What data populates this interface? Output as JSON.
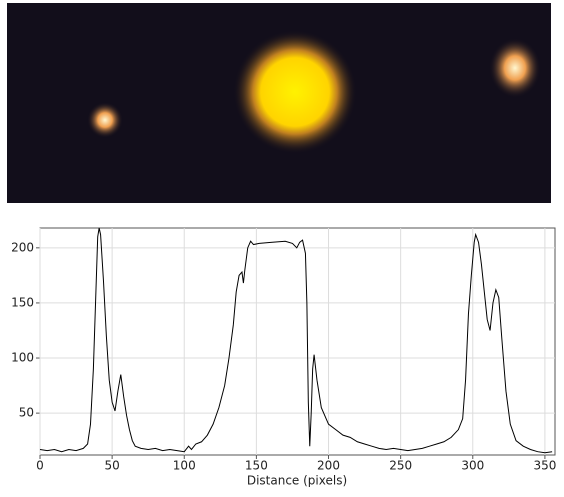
{
  "chart_data": {
    "type": "line",
    "xlabel": "Distance (pixels)",
    "x": [
      0,
      5,
      10,
      15,
      20,
      25,
      30,
      33,
      35,
      37,
      39,
      40,
      41,
      42,
      44,
      46,
      48,
      50,
      52,
      54,
      56,
      58,
      60,
      62,
      64,
      66,
      70,
      75,
      80,
      85,
      90,
      95,
      100,
      103,
      105,
      108,
      112,
      116,
      120,
      124,
      128,
      131,
      134,
      136,
      138,
      140,
      141,
      142,
      144,
      146,
      148,
      152,
      160,
      170,
      175,
      178,
      180,
      182,
      184,
      185,
      186,
      187,
      188,
      189,
      190,
      192,
      195,
      200,
      205,
      210,
      215,
      220,
      225,
      230,
      235,
      240,
      245,
      250,
      255,
      260,
      265,
      270,
      275,
      280,
      285,
      290,
      293,
      295,
      297,
      299,
      301,
      302,
      304,
      306,
      308,
      310,
      312,
      314,
      316,
      318,
      320,
      323,
      326,
      330,
      335,
      340,
      345,
      350,
      355
    ],
    "series": [
      {
        "color": "#000000",
        "values": [
          17,
          16,
          17,
          15,
          17,
          16,
          18,
          22,
          40,
          90,
          170,
          210,
          218,
          212,
          170,
          120,
          80,
          60,
          52,
          70,
          85,
          65,
          48,
          35,
          25,
          20,
          18,
          17,
          18,
          16,
          17,
          16,
          15,
          20,
          17,
          22,
          24,
          30,
          40,
          55,
          75,
          100,
          130,
          160,
          175,
          178,
          168,
          180,
          200,
          206,
          203,
          204,
          205,
          206,
          204,
          200,
          205,
          207,
          195,
          150,
          60,
          20,
          50,
          90,
          103,
          80,
          55,
          40,
          35,
          30,
          28,
          24,
          22,
          20,
          18,
          17,
          18,
          17,
          16,
          17,
          18,
          20,
          22,
          24,
          28,
          35,
          45,
          80,
          140,
          175,
          205,
          212,
          205,
          185,
          160,
          135,
          125,
          150,
          162,
          155,
          120,
          70,
          40,
          25,
          20,
          17,
          15,
          14,
          15
        ]
      }
    ],
    "xlim": [
      0,
      357
    ],
    "ylim": [
      12,
      218
    ],
    "xticks": [
      0,
      50,
      100,
      150,
      200,
      250,
      300,
      350
    ],
    "yticks": [
      50,
      100,
      150,
      200
    ],
    "grid": true
  }
}
